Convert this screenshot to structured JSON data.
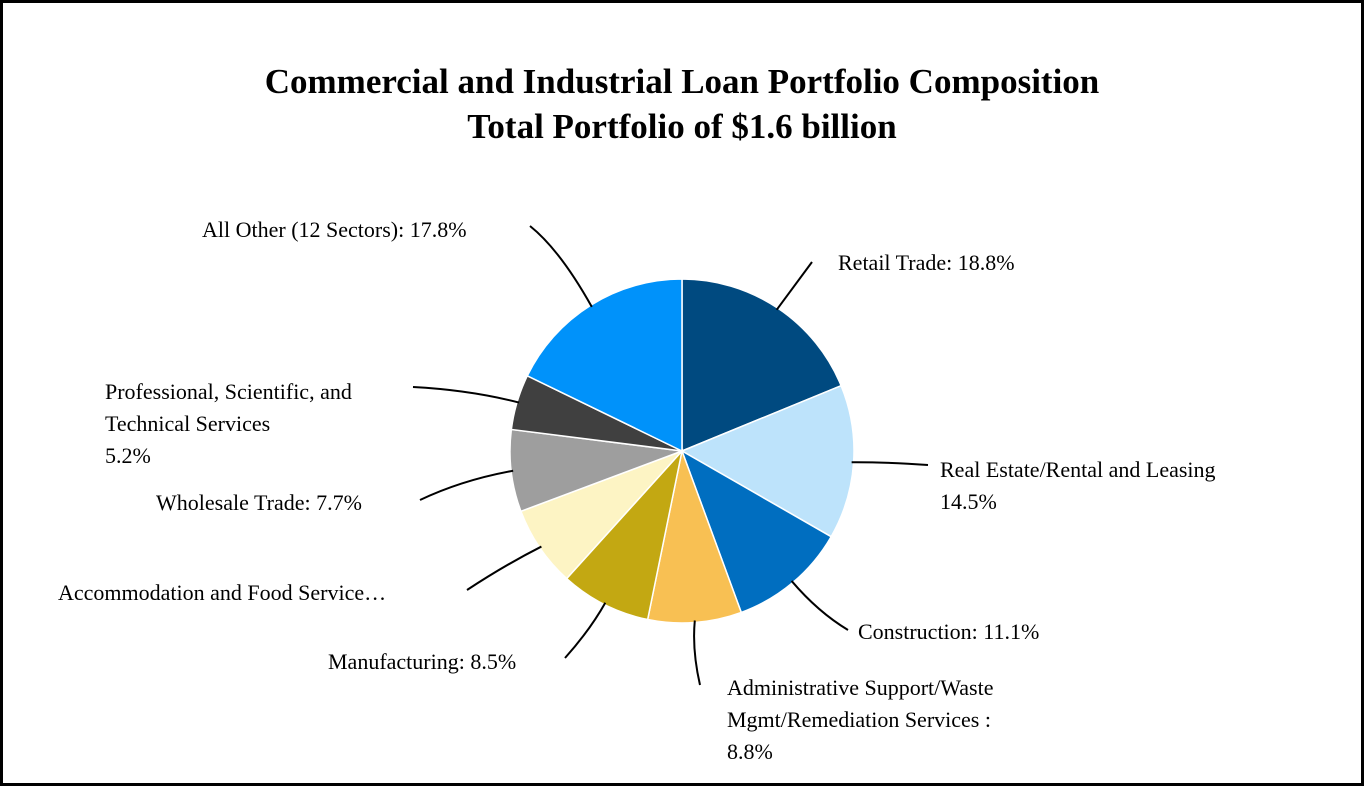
{
  "chart_data": {
    "type": "pie",
    "title": "Commercial and Industrial Loan Portfolio Composition",
    "subtitle": "Total Portfolio of $1.6 billion",
    "slices": [
      {
        "label": "Retail Trade: 18.8%",
        "value": 18.8,
        "color": "#004a80"
      },
      {
        "label": "Real Estate/Rental and Leasing\n14.5%",
        "value": 14.5,
        "color": "#bde3fb"
      },
      {
        "label": "Construction: 11.1%",
        "value": 11.1,
        "color": "#006ec0"
      },
      {
        "label": "Administrative Support/Waste\nMgmt/Remediation Services :\n8.8%",
        "value": 8.8,
        "color": "#f8c053"
      },
      {
        "label": "Manufacturing: 8.5%",
        "value": 8.5,
        "color": "#c3a812"
      },
      {
        "label": "Accommodation and Food Service…",
        "value": 7.6,
        "color": "#fdf4c4"
      },
      {
        "label": "Wholesale Trade: 7.7%",
        "value": 7.7,
        "color": "#9e9e9e"
      },
      {
        "label": "Professional, Scientific, and\nTechnical Services\n5.2%",
        "value": 5.2,
        "color": "#404040"
      },
      {
        "label": "All Other (12 Sectors): 17.8%",
        "value": 17.8,
        "color": "#0092fa"
      }
    ]
  }
}
